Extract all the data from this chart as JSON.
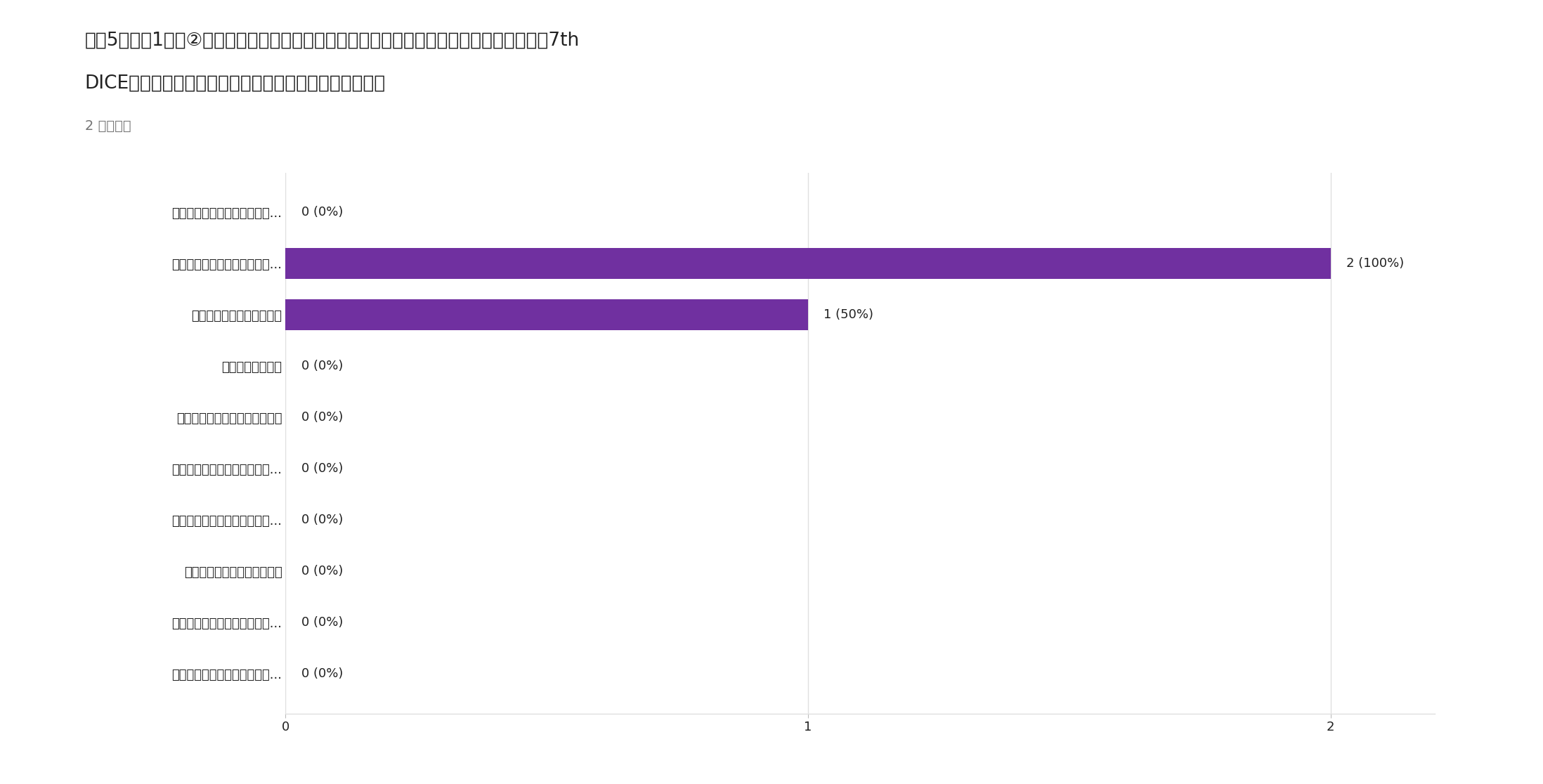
{
  "title_line1": "質問5　質問1で「②知っているが、行ったことはない。」と回答された方へ質問します。7th",
  "title_line2": "DICEに行かなかった理由は何ですか？　（複数回答可）",
  "subtitle": "2 件の回答",
  "categories": [
    "ボードゲームや店自体に興味...",
    "興味はあったが、行くきっか...",
    "地理的に都合が悪かった。",
    "料金が高かった。",
    "知り合いに会いたくなかった。",
    "知らない客と相席するのが嫌...",
    "学生がやっている、というの...",
    "利用方法が分からなかった。",
    "なんとなく嫌なイメージがあ...",
    "特に意味はないが行かなかっ..."
  ],
  "values": [
    0,
    2,
    1,
    0,
    0,
    0,
    0,
    0,
    0,
    0
  ],
  "labels": [
    "0 (0%)",
    "2 (100%)",
    "1 (50%)",
    "0 (0%)",
    "0 (0%)",
    "0 (0%)",
    "0 (0%)",
    "0 (0%)",
    "0 (0%)",
    "0 (0%)"
  ],
  "bar_color": "#7030a0",
  "background_color": "#ffffff",
  "grid_color": "#e0e0e0",
  "text_color": "#212121",
  "subtitle_color": "#757575",
  "title_fontsize": 19,
  "subtitle_fontsize": 14,
  "tick_fontsize": 13,
  "label_fontsize": 13,
  "xlim": [
    0,
    2.2
  ],
  "xticks": [
    0,
    1,
    2
  ]
}
